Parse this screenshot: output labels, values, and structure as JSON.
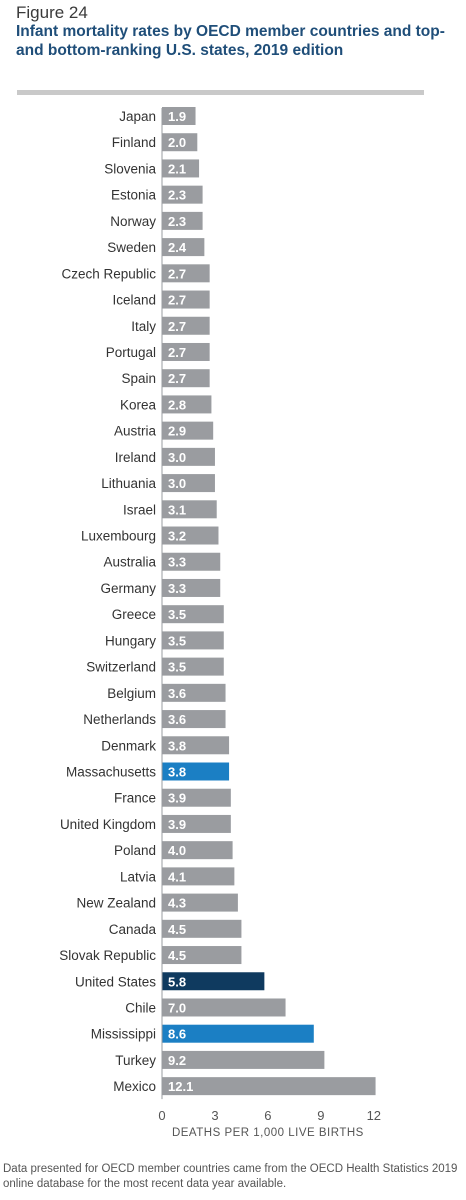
{
  "figure_label": "Figure 24",
  "footnote": "Data presented for OECD member countries came from the OECD Health Statistics 2019 online database for the most recent data year available.",
  "colors": {
    "default_bar": "#9a9ca0",
    "highlight_bar": "#1b7fc4",
    "us_bar": "#0f3a5f",
    "title": "#1f4e79"
  },
  "chart_data": {
    "type": "bar",
    "orientation": "horizontal",
    "title": "Infant mortality rates by OECD member countries and top- and bottom-ranking U.S. states, 2019 edition",
    "xlabel": "DEATHS PER 1,000 LIVE BIRTHS",
    "xlim": [
      0,
      12
    ],
    "xticks": [
      0,
      3,
      6,
      9,
      12
    ],
    "grid": false,
    "categories": [
      "Japan",
      "Finland",
      "Slovenia",
      "Estonia",
      "Norway",
      "Sweden",
      "Czech Republic",
      "Iceland",
      "Italy",
      "Portugal",
      "Spain",
      "Korea",
      "Austria",
      "Ireland",
      "Lithuania",
      "Israel",
      "Luxembourg",
      "Australia",
      "Germany",
      "Greece",
      "Hungary",
      "Switzerland",
      "Belgium",
      "Netherlands",
      "Denmark",
      "Massachusetts",
      "France",
      "United Kingdom",
      "Poland",
      "Latvia",
      "New Zealand",
      "Canada",
      "Slovak Republic",
      "United States",
      "Chile",
      "Mississippi",
      "Turkey",
      "Mexico"
    ],
    "values": [
      1.9,
      2.0,
      2.1,
      2.3,
      2.3,
      2.4,
      2.7,
      2.7,
      2.7,
      2.7,
      2.7,
      2.8,
      2.9,
      3.0,
      3.0,
      3.1,
      3.2,
      3.3,
      3.3,
      3.5,
      3.5,
      3.5,
      3.6,
      3.6,
      3.8,
      3.8,
      3.9,
      3.9,
      4.0,
      4.1,
      4.3,
      4.5,
      4.5,
      5.8,
      7.0,
      8.6,
      9.2,
      12.1
    ],
    "data_labels": [
      "1.9",
      "2.0",
      "2.1",
      "2.3",
      "2.3",
      "2.4",
      "2.7",
      "2.7",
      "2.7",
      "2.7",
      "2.7",
      "2.8",
      "2.9",
      "3.0",
      "3.0",
      "3.1",
      "3.2",
      "3.3",
      "3.3",
      "3.5",
      "3.5",
      "3.5",
      "3.6",
      "3.6",
      "3.8",
      "3.8",
      "3.9",
      "3.9",
      "4.0",
      "4.1",
      "4.3",
      "4.5",
      "4.5",
      "5.8",
      "7.0",
      "8.6",
      "9.2",
      "12.1"
    ],
    "bar_styles": [
      "default",
      "default",
      "default",
      "default",
      "default",
      "default",
      "default",
      "default",
      "default",
      "default",
      "default",
      "default",
      "default",
      "default",
      "default",
      "default",
      "default",
      "default",
      "default",
      "default",
      "default",
      "default",
      "default",
      "default",
      "default",
      "highlight",
      "default",
      "default",
      "default",
      "default",
      "default",
      "default",
      "default",
      "us",
      "default",
      "highlight",
      "default",
      "default"
    ]
  }
}
